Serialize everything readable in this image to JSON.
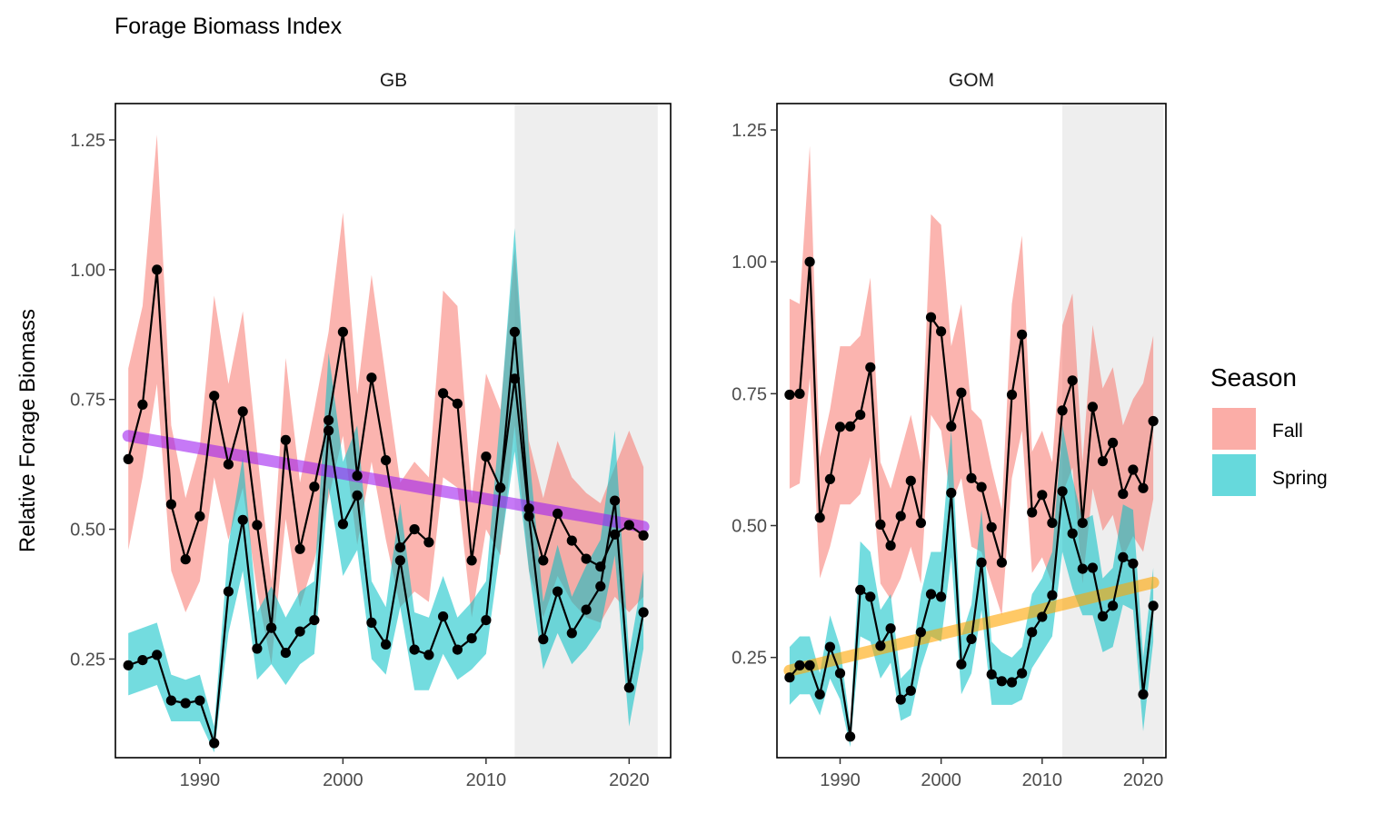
{
  "chart_data": {
    "type": "line",
    "title": "Forage Biomass Index",
    "ylabel": "Relative Forage Biomass",
    "xlabel": "",
    "legend": {
      "title": "Season",
      "position": "right",
      "entries": [
        {
          "label": "Fall",
          "color": "#F8766D"
        },
        {
          "label": "Spring",
          "color": "#00BFC4"
        }
      ]
    },
    "panels": [
      {
        "name": "GB",
        "xlim": [
          1984.1,
          2022.9
        ],
        "ylim": [
          0.06,
          1.32
        ],
        "xticks": [
          1990,
          2000,
          2010,
          2020
        ],
        "yticks": [
          0.25,
          0.5,
          0.75,
          1.0
        ],
        "ytick_labels": [
          "0.25",
          "0.50",
          "0.75",
          "1.00",
          "1.25"
        ],
        "ytick_values": [
          0.25,
          0.5,
          0.75,
          1.0,
          1.25
        ],
        "highlight_range": [
          2012,
          2022
        ],
        "trend": {
          "color": "#A020F0",
          "x": [
            1985,
            2021
          ],
          "y": [
            0.68,
            0.505
          ]
        },
        "series": [
          {
            "name": "Fall",
            "x": [
              1985,
              1986,
              1987,
              1988,
              1989,
              1990,
              1991,
              1992,
              1993,
              1994,
              1995,
              1996,
              1997,
              1998,
              1999,
              2000,
              2001,
              2002,
              2003,
              2004,
              2005,
              2006,
              2007,
              2008,
              2009,
              2010,
              2011,
              2012,
              2013,
              2014,
              2015,
              2016,
              2017,
              2018,
              2019,
              2020,
              2021
            ],
            "y": [
              0.635,
              0.74,
              1.0,
              0.548,
              0.442,
              0.525,
              0.757,
              0.625,
              0.727,
              0.508,
              0.31,
              0.672,
              0.462,
              0.582,
              0.71,
              0.88,
              0.603,
              0.792,
              0.633,
              0.465,
              0.5,
              0.475,
              0.762,
              0.742,
              0.44,
              0.64,
              0.58,
              0.88,
              0.54,
              0.44,
              0.53,
              0.478,
              0.443,
              0.428,
              0.49,
              0.508,
              0.488
            ],
            "lower": [
              0.46,
              0.6,
              0.78,
              0.42,
              0.34,
              0.4,
              0.6,
              0.48,
              0.58,
              0.38,
              0.24,
              0.52,
              0.35,
              0.44,
              0.56,
              0.68,
              0.47,
              0.63,
              0.48,
              0.35,
              0.38,
              0.36,
              0.6,
              0.58,
              0.33,
              0.5,
              0.45,
              0.7,
              0.42,
              0.33,
              0.41,
              0.36,
              0.33,
              0.32,
              0.37,
              0.34,
              0.37
            ],
            "upper": [
              0.81,
              0.93,
              1.26,
              0.7,
              0.56,
              0.66,
              0.95,
              0.78,
              0.92,
              0.65,
              0.4,
              0.83,
              0.59,
              0.73,
              0.88,
              1.11,
              0.76,
              0.99,
              0.79,
              0.59,
              0.63,
              0.6,
              0.96,
              0.93,
              0.56,
              0.8,
              0.73,
              1.04,
              0.67,
              0.56,
              0.67,
              0.6,
              0.57,
              0.55,
              0.62,
              0.69,
              0.62
            ]
          },
          {
            "name": "Spring",
            "x": [
              1985,
              1986,
              1987,
              1988,
              1989,
              1990,
              1991,
              1992,
              1993,
              1994,
              1995,
              1996,
              1997,
              1998,
              1999,
              2000,
              2001,
              2002,
              2003,
              2004,
              2005,
              2006,
              2007,
              2008,
              2009,
              2010,
              2011,
              2012,
              2013,
              2014,
              2015,
              2016,
              2017,
              2018,
              2019,
              2020,
              2021
            ],
            "y": [
              0.238,
              0.248,
              0.258,
              0.17,
              0.165,
              0.17,
              0.088,
              0.38,
              0.518,
              0.27,
              0.31,
              0.262,
              0.303,
              0.325,
              0.69,
              0.51,
              0.565,
              0.32,
              0.278,
              0.44,
              0.268,
              0.258,
              0.332,
              0.268,
              0.29,
              0.325,
              0.58,
              0.79,
              0.525,
              0.288,
              0.38,
              0.3,
              0.345,
              0.39,
              0.555,
              0.195,
              0.34
            ],
            "lower": [
              0.18,
              0.19,
              0.2,
              0.13,
              0.13,
              0.13,
              0.07,
              0.3,
              0.42,
              0.21,
              0.24,
              0.2,
              0.24,
              0.26,
              0.58,
              0.41,
              0.46,
              0.25,
              0.22,
              0.35,
              0.19,
              0.19,
              0.26,
              0.21,
              0.23,
              0.26,
              0.46,
              0.65,
              0.42,
              0.23,
              0.3,
              0.24,
              0.27,
              0.31,
              0.45,
              0.12,
              0.27
            ],
            "upper": [
              0.3,
              0.31,
              0.32,
              0.22,
              0.21,
              0.22,
              0.12,
              0.47,
              0.64,
              0.34,
              0.39,
              0.33,
              0.38,
              0.4,
              0.84,
              0.63,
              0.7,
              0.4,
              0.35,
              0.55,
              0.34,
              0.33,
              0.41,
              0.33,
              0.36,
              0.4,
              0.72,
              1.08,
              0.65,
              0.36,
              0.47,
              0.37,
              0.43,
              0.48,
              0.69,
              0.26,
              0.42
            ]
          }
        ]
      },
      {
        "name": "GOM",
        "xlim": [
          1983.75,
          2022.25
        ],
        "ylim": [
          0.06,
          1.3
        ],
        "xticks": [
          1990,
          2000,
          2010,
          2020
        ],
        "yticks": [
          0.25,
          0.5,
          0.75,
          1.0
        ],
        "ytick_labels": [
          "0.25",
          "0.50",
          "0.75",
          "1.00",
          "1.25"
        ],
        "ytick_values": [
          0.25,
          0.5,
          0.75,
          1.0,
          1.25
        ],
        "highlight_range": [
          2012,
          2022
        ],
        "trend": {
          "color": "#FFA500",
          "x": [
            1985,
            2021
          ],
          "y": [
            0.225,
            0.392
          ]
        },
        "series": [
          {
            "name": "Fall",
            "x": [
              1985,
              1986,
              1987,
              1988,
              1989,
              1990,
              1991,
              1992,
              1993,
              1994,
              1995,
              1996,
              1997,
              1998,
              1999,
              2000,
              2001,
              2002,
              2003,
              2004,
              2005,
              2006,
              2007,
              2008,
              2009,
              2010,
              2011,
              2012,
              2013,
              2014,
              2015,
              2016,
              2017,
              2018,
              2019,
              2020,
              2021
            ],
            "y": [
              0.748,
              0.75,
              1.0,
              0.515,
              0.588,
              0.687,
              0.688,
              0.71,
              0.8,
              0.502,
              0.462,
              0.518,
              0.585,
              0.505,
              0.895,
              0.868,
              0.688,
              0.752,
              0.59,
              0.573,
              0.497,
              0.43,
              0.748,
              0.862,
              0.525,
              0.558,
              0.505,
              0.718,
              0.775,
              0.505,
              0.725,
              0.622,
              0.657,
              0.56,
              0.606,
              0.571,
              0.698
            ],
            "lower": [
              0.57,
              0.58,
              0.78,
              0.4,
              0.46,
              0.54,
              0.54,
              0.56,
              0.63,
              0.39,
              0.36,
              0.4,
              0.46,
              0.39,
              0.71,
              0.68,
              0.54,
              0.59,
              0.46,
              0.45,
              0.39,
              0.33,
              0.59,
              0.68,
              0.41,
              0.44,
              0.39,
              0.56,
              0.61,
              0.39,
              0.57,
              0.49,
              0.52,
              0.44,
              0.48,
              0.45,
              0.55
            ],
            "upper": [
              0.93,
              0.92,
              1.22,
              0.63,
              0.72,
              0.84,
              0.84,
              0.86,
              0.97,
              0.62,
              0.57,
              0.64,
              0.71,
              0.62,
              1.09,
              1.07,
              0.84,
              0.92,
              0.72,
              0.7,
              0.61,
              0.53,
              0.92,
              1.05,
              0.64,
              0.68,
              0.62,
              0.88,
              0.94,
              0.62,
              0.88,
              0.76,
              0.8,
              0.69,
              0.74,
              0.77,
              0.86
            ]
          },
          {
            "name": "Spring",
            "x": [
              1985,
              1986,
              1987,
              1988,
              1989,
              1990,
              1991,
              1992,
              1993,
              1994,
              1995,
              1996,
              1997,
              1998,
              1999,
              2000,
              2001,
              2002,
              2003,
              2004,
              2005,
              2006,
              2007,
              2008,
              2009,
              2010,
              2011,
              2012,
              2013,
              2014,
              2015,
              2016,
              2017,
              2018,
              2019,
              2020,
              2021
            ],
            "y": [
              0.212,
              0.235,
              0.235,
              0.18,
              0.27,
              0.22,
              0.1,
              0.378,
              0.365,
              0.272,
              0.305,
              0.17,
              0.187,
              0.298,
              0.37,
              0.365,
              0.562,
              0.237,
              0.285,
              0.43,
              0.218,
              0.205,
              0.203,
              0.22,
              0.298,
              0.327,
              0.368,
              0.565,
              0.485,
              0.418,
              0.42,
              0.328,
              0.348,
              0.44,
              0.428,
              0.18,
              0.348
            ],
            "lower": [
              0.16,
              0.18,
              0.18,
              0.14,
              0.21,
              0.17,
              0.08,
              0.29,
              0.28,
              0.21,
              0.24,
              0.13,
              0.14,
              0.23,
              0.29,
              0.28,
              0.44,
              0.18,
              0.22,
              0.34,
              0.16,
              0.16,
              0.16,
              0.17,
              0.23,
              0.26,
              0.29,
              0.45,
              0.38,
              0.33,
              0.33,
              0.26,
              0.27,
              0.35,
              0.34,
              0.11,
              0.28
            ],
            "upper": [
              0.27,
              0.29,
              0.29,
              0.22,
              0.33,
              0.27,
              0.12,
              0.47,
              0.45,
              0.34,
              0.37,
              0.21,
              0.23,
              0.37,
              0.45,
              0.45,
              0.68,
              0.29,
              0.35,
              0.53,
              0.28,
              0.26,
              0.25,
              0.27,
              0.37,
              0.4,
              0.45,
              0.69,
              0.59,
              0.51,
              0.52,
              0.4,
              0.42,
              0.54,
              0.53,
              0.25,
              0.42
            ]
          }
        ]
      }
    ]
  }
}
